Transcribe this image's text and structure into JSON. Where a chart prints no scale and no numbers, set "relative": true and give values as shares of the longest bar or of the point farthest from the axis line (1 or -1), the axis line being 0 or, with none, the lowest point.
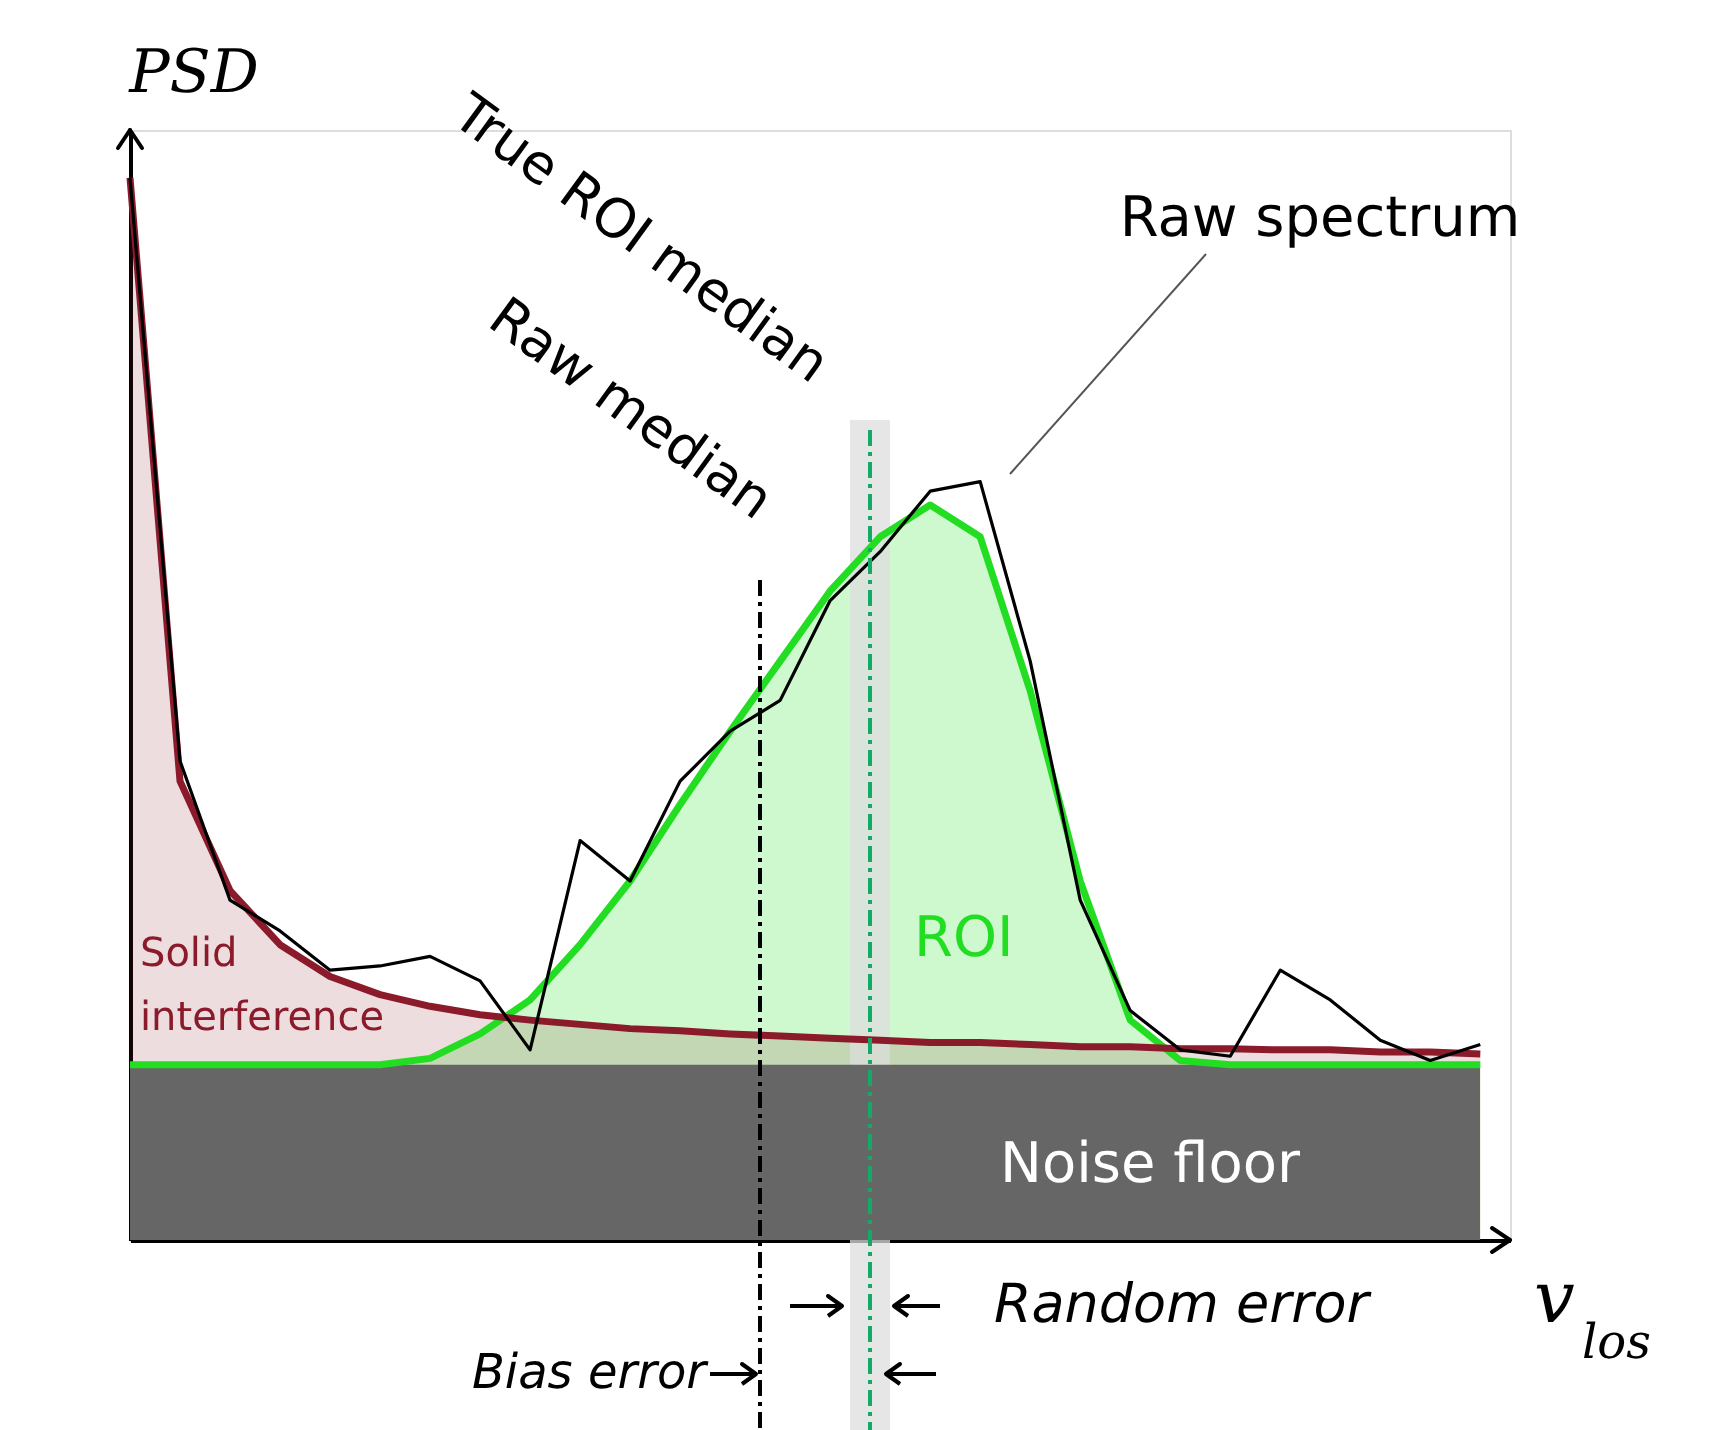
{
  "chart_data": {
    "type": "line",
    "relative": true,
    "ylabel": "PSD",
    "xlabel": "v$_{los}$",
    "categories": [
      null,
      null,
      null,
      null,
      null,
      null,
      null,
      null,
      null,
      null,
      null,
      null,
      null,
      null,
      null,
      null,
      null,
      null,
      null,
      null,
      null,
      null,
      null,
      null,
      null,
      null,
      null,
      null
    ],
    "series": [
      {
        "name": "ROI",
        "type": "area",
        "color": "#22dd22",
        "values": [
          0.165,
          0.165,
          0.165,
          0.165,
          0.165,
          0.165,
          0.171,
          0.194,
          0.226,
          0.278,
          0.338,
          0.41,
          0.479,
          0.545,
          0.611,
          0.662,
          0.692,
          0.662,
          0.517,
          0.338,
          0.207,
          0.169,
          0.165,
          0.165,
          0.165,
          0.165,
          0.165,
          0.165
        ]
      },
      {
        "name": "Solid interference",
        "type": "area",
        "color": "#8b1a2b",
        "values": [
          1.0,
          0.432,
          0.329,
          0.278,
          0.248,
          0.231,
          0.22,
          0.212,
          0.207,
          0.203,
          0.199,
          0.197,
          0.194,
          0.192,
          0.19,
          0.188,
          0.186,
          0.186,
          0.184,
          0.182,
          0.182,
          0.18,
          0.18,
          0.179,
          0.179,
          0.177,
          0.177,
          0.175
        ]
      },
      {
        "name": "Raw spectrum",
        "color": "#000000",
        "values": [
          1.0,
          0.451,
          0.32,
          0.291,
          0.254,
          0.258,
          0.267,
          0.244,
          0.179,
          0.376,
          0.338,
          0.432,
          0.479,
          0.508,
          0.602,
          0.648,
          0.705,
          0.714,
          0.545,
          0.32,
          0.216,
          0.179,
          0.173,
          0.254,
          0.226,
          0.188,
          0.169,
          0.184
        ]
      }
    ],
    "bands": [
      {
        "axis": "y",
        "from": 0,
        "to": 0.165,
        "label": "Noise floor",
        "color": "#666666"
      }
    ],
    "annotations": [
      "Raw median",
      "True ROI median",
      "Random error",
      "Bias error"
    ],
    "legend": false,
    "grid": false,
    "tick_labels": false
  }
}
